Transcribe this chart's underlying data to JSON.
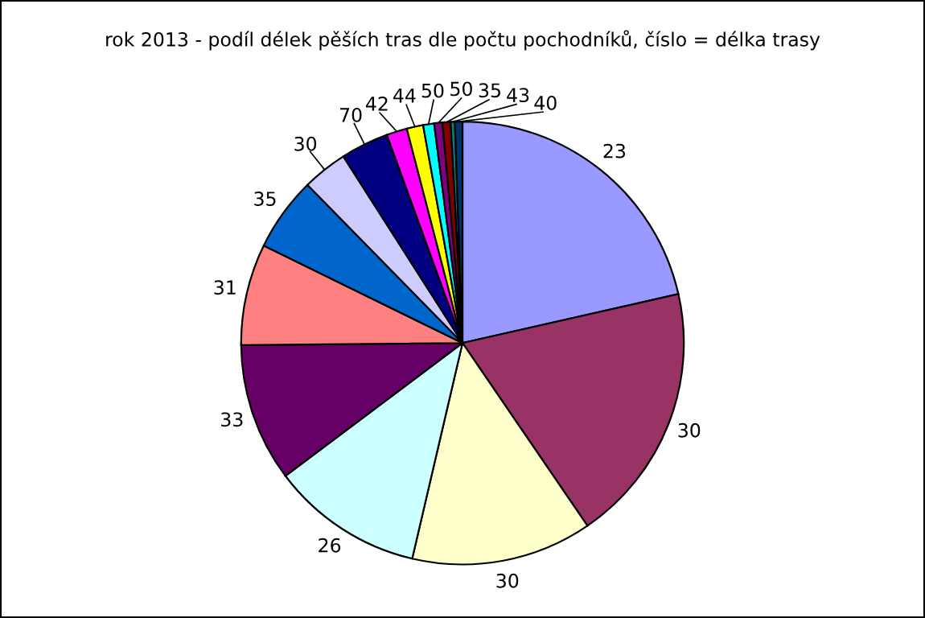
{
  "chart_data": {
    "type": "pie",
    "title": "rok 2013 - podíl délek pěších tras dle počtu pochodníků, číslo = délka trasy",
    "categories": [
      "23",
      "30",
      "30",
      "26",
      "33",
      "31",
      "35",
      "30",
      "70",
      "42",
      "44",
      "50",
      "50",
      "35",
      "43",
      "40"
    ],
    "values": [
      21.45,
      19,
      13.2,
      11.1,
      10.1,
      7.4,
      5.4,
      3.3,
      3.5,
      1.5,
      1.2,
      0.8,
      0.6,
      0.6,
      0.3,
      0.55
    ],
    "colors": [
      "#9999ff",
      "#993366",
      "#ffffcc",
      "#ccffff",
      "#660066",
      "#ff8080",
      "#0066cc",
      "#ccccff",
      "#000080",
      "#ff00ff",
      "#ffff00",
      "#00ffff",
      "#800080",
      "#800000",
      "#008080",
      "#003366"
    ]
  }
}
